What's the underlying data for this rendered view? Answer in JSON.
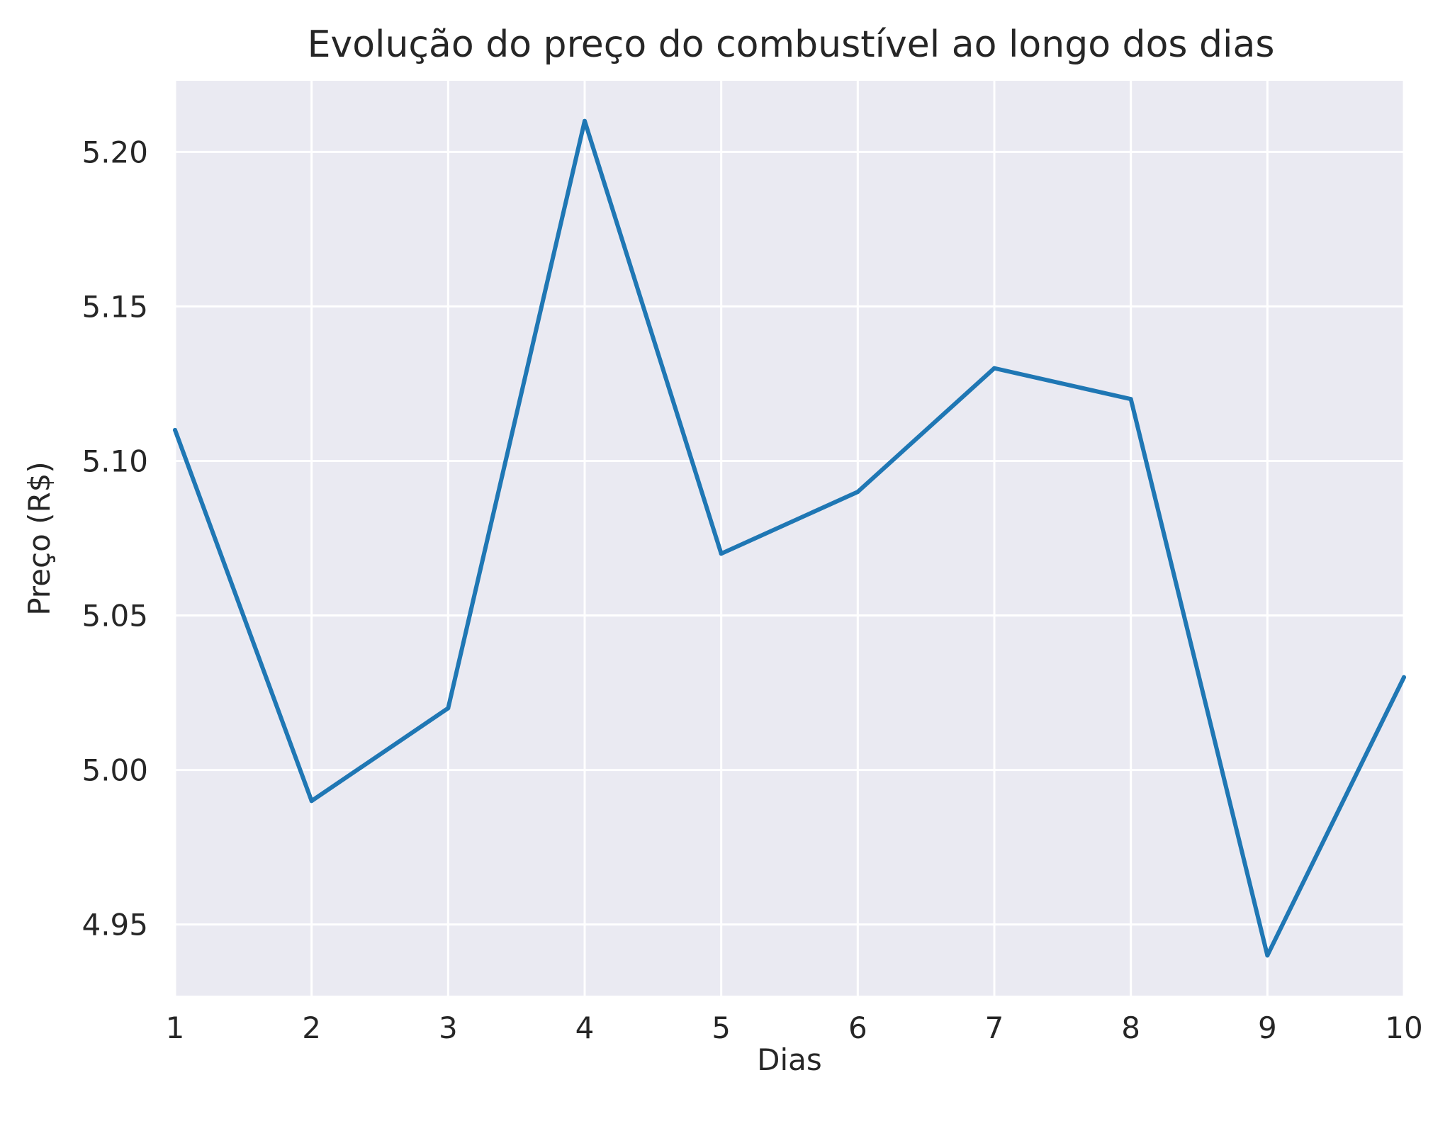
{
  "chart_data": {
    "type": "line",
    "title": "Evolução do preço do combustível ao longo dos dias",
    "xlabel": "Dias",
    "ylabel": "Preço (R$)",
    "x": [
      1,
      2,
      3,
      4,
      5,
      6,
      7,
      8,
      9,
      10
    ],
    "series": [
      {
        "values": [
          5.11,
          4.99,
          5.02,
          5.21,
          5.07,
          5.09,
          5.13,
          5.12,
          4.94,
          5.03
        ],
        "color": "#1f77b4"
      }
    ],
    "xlim": [
      1,
      10
    ],
    "ylim": [
      4.927,
      5.223
    ],
    "x_ticks": [
      1,
      2,
      3,
      4,
      5,
      6,
      7,
      8,
      9,
      10
    ],
    "x_tick_labels": [
      "1",
      "2",
      "3",
      "4",
      "5",
      "6",
      "7",
      "8",
      "9",
      "10"
    ],
    "y_ticks": [
      4.95,
      5.0,
      5.05,
      5.1,
      5.15,
      5.2
    ],
    "y_tick_labels": [
      "4.95",
      "5.00",
      "5.05",
      "5.10",
      "5.15",
      "5.20"
    ],
    "grid": true,
    "plot_background": "#eaeaf2",
    "grid_color": "#ffffff",
    "text_color": "#262626"
  }
}
